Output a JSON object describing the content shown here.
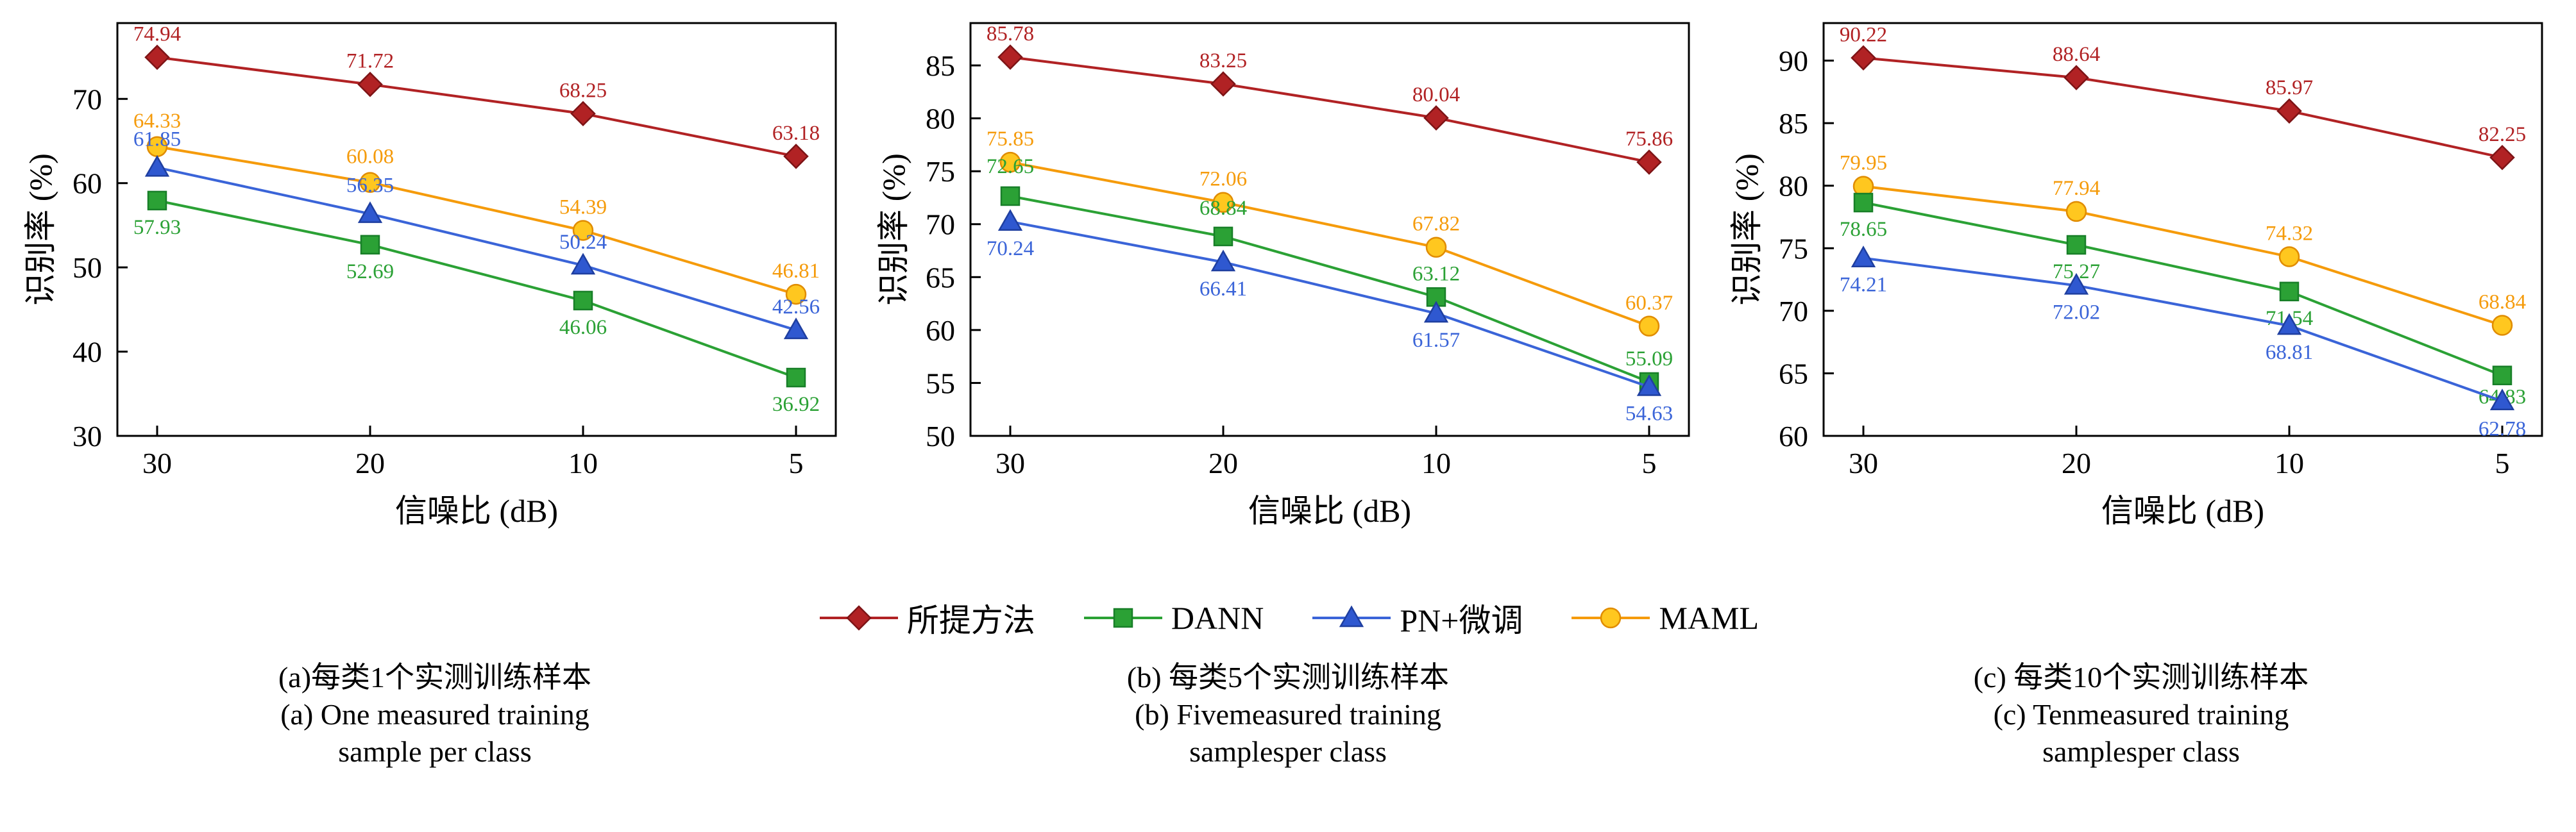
{
  "axis": {
    "xlabel": "信噪比 (dB)",
    "ylabel": "识别率 (%)"
  },
  "legend": [
    {
      "label": "所提方法",
      "marker": "diamond",
      "color": "#B12224",
      "fill": "#B12224",
      "edge": "#7E1416"
    },
    {
      "label": "DANN",
      "marker": "square",
      "color": "#2BA135",
      "fill": "#2BA135",
      "edge": "#187F28"
    },
    {
      "label": "PN+微调",
      "marker": "triangle",
      "color": "#3A64D8",
      "fill": "#2F58D0",
      "edge": "#1F3FA0"
    },
    {
      "label": "MAML",
      "marker": "circle",
      "color": "#F59B0B",
      "fill": "#FFC71F",
      "edge": "#E08C00"
    }
  ],
  "chart_data": [
    {
      "type": "line",
      "title": "(a) One measured training sample per class",
      "x": [
        30,
        20,
        10,
        5
      ],
      "xlabel": "信噪比 (dB)",
      "ylabel": "识别率 (%)",
      "ylim": [
        30,
        79
      ],
      "yticks": [
        30,
        40,
        50,
        60,
        70
      ],
      "grid": false,
      "series": [
        {
          "name": "所提方法",
          "marker": "diamond",
          "color": "#B12224",
          "fill": "#B12224",
          "edge": "#7E1416",
          "values": [
            74.94,
            71.72,
            68.25,
            63.18
          ],
          "label_side": "above"
        },
        {
          "name": "MAML",
          "marker": "circle",
          "color": "#F59B0B",
          "fill": "#FFC71F",
          "edge": "#E08C00",
          "values": [
            64.33,
            60.08,
            54.39,
            46.81
          ],
          "label_side": "above",
          "label_dy": [
            -4,
            -4,
            0,
            0
          ]
        },
        {
          "name": "PN+微调",
          "marker": "triangle",
          "color": "#3A64D8",
          "fill": "#2F58D0",
          "edge": "#1F3FA0",
          "values": [
            61.85,
            56.35,
            50.24,
            42.56
          ],
          "label_side": "above",
          "label_dy": [
            -8,
            -8,
            0,
            0
          ]
        },
        {
          "name": "DANN",
          "marker": "square",
          "color": "#2BA135",
          "fill": "#2BA135",
          "edge": "#187F28",
          "values": [
            57.93,
            52.69,
            46.06,
            36.92
          ],
          "label_side": "below"
        }
      ]
    },
    {
      "type": "line",
      "title": "(b) Five measured training samples per class",
      "x": [
        30,
        20,
        10,
        5
      ],
      "xlabel": "信噪比 (dB)",
      "ylabel": "识别率 (%)",
      "ylim": [
        50,
        89
      ],
      "yticks": [
        50,
        55,
        60,
        65,
        70,
        75,
        80,
        85
      ],
      "grid": false,
      "series": [
        {
          "name": "所提方法",
          "marker": "diamond",
          "color": "#B12224",
          "fill": "#B12224",
          "edge": "#7E1416",
          "values": [
            85.78,
            83.25,
            80.04,
            75.86
          ],
          "label_side": "above"
        },
        {
          "name": "MAML",
          "marker": "circle",
          "color": "#F59B0B",
          "fill": "#FFC71F",
          "edge": "#E08C00",
          "values": [
            75.85,
            72.06,
            67.82,
            60.37
          ],
          "label_side": "above"
        },
        {
          "name": "DANN",
          "marker": "square",
          "color": "#2BA135",
          "fill": "#2BA135",
          "edge": "#187F28",
          "values": [
            72.65,
            68.84,
            63.12,
            55.09
          ],
          "label_side": "above",
          "label_dy": [
            -10,
            -8,
            0,
            0
          ]
        },
        {
          "name": "PN+微调",
          "marker": "triangle",
          "color": "#3A64D8",
          "fill": "#2F58D0",
          "edge": "#1F3FA0",
          "values": [
            70.24,
            66.41,
            61.57,
            54.63
          ],
          "label_side": "below"
        }
      ]
    },
    {
      "type": "line",
      "title": "(c) Ten measured training samples per class",
      "x": [
        30,
        20,
        10,
        5
      ],
      "xlabel": "信噪比 (dB)",
      "ylabel": "识别率 (%)",
      "ylim": [
        60,
        93
      ],
      "yticks": [
        60,
        65,
        70,
        75,
        80,
        85,
        90
      ],
      "grid": false,
      "series": [
        {
          "name": "所提方法",
          "marker": "diamond",
          "color": "#B12224",
          "fill": "#B12224",
          "edge": "#7E1416",
          "values": [
            90.22,
            88.64,
            85.97,
            82.25
          ],
          "label_side": "above"
        },
        {
          "name": "MAML",
          "marker": "circle",
          "color": "#F59B0B",
          "fill": "#FFC71F",
          "edge": "#E08C00",
          "values": [
            79.95,
            77.94,
            74.32,
            68.84
          ],
          "label_side": "above"
        },
        {
          "name": "DANN",
          "marker": "square",
          "color": "#2BA135",
          "fill": "#2BA135",
          "edge": "#187F28",
          "values": [
            78.65,
            75.27,
            71.54,
            64.83
          ],
          "label_side": "below",
          "label_dy": [
            0,
            0,
            0,
            -8
          ]
        },
        {
          "name": "PN+微调",
          "marker": "triangle",
          "color": "#3A64D8",
          "fill": "#2F58D0",
          "edge": "#1F3FA0",
          "values": [
            74.21,
            72.02,
            68.81,
            62.78
          ],
          "label_side": "below",
          "label_dy": [
            0,
            0,
            0,
            2
          ]
        }
      ]
    }
  ],
  "captions": [
    {
      "zh": "(a)每类1个实测训练样本",
      "en1": "(a) One measured training",
      "en2": "sample per class"
    },
    {
      "zh": "(b) 每类5个实测训练样本",
      "en1": "(b) Fivemeasured training",
      "en2": "samplesper class"
    },
    {
      "zh": "(c) 每类10个实测训练样本",
      "en1": "(c) Tenmeasured training",
      "en2": "samplesper class"
    }
  ]
}
